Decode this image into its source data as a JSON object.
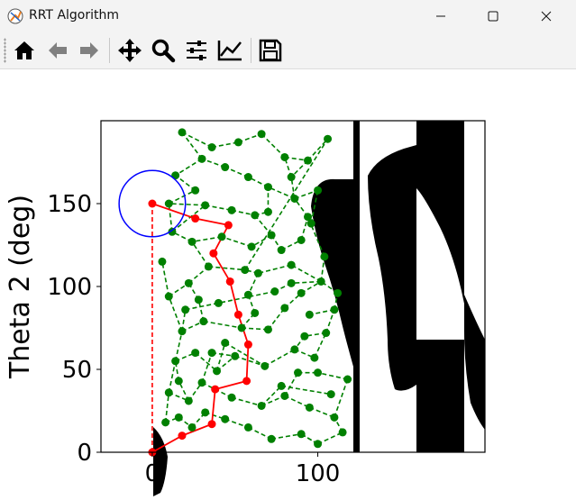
{
  "window": {
    "title": "RRT Algorithm",
    "minimize_label": "Minimize",
    "maximize_label": "Maximize",
    "close_label": "Close"
  },
  "toolbar": {
    "items": [
      "home-icon",
      "back-arrow-icon",
      "forward-arrow-icon",
      "pan-icon",
      "zoom-icon",
      "subplots-icon",
      "customize-icon",
      "save-icon"
    ]
  },
  "chart_data": {
    "type": "scatter",
    "ylabel": "Theta 2 (deg)",
    "xlim": [
      -31,
      201
    ],
    "ylim": [
      0,
      200
    ],
    "x_ticks": [
      "0",
      "100"
    ],
    "y_ticks": [
      "0",
      "50",
      "100",
      "150"
    ],
    "colors": {
      "tree": "#008000",
      "path": "#ff0000",
      "goal_circle": "#0000ff",
      "obstacle": "#000000"
    },
    "goal": {
      "center": [
        0,
        150
      ],
      "radius": 20
    },
    "path": [
      [
        0,
        0
      ],
      [
        18,
        10
      ],
      [
        36,
        17
      ],
      [
        38,
        38
      ],
      [
        57,
        43
      ],
      [
        58,
        65
      ],
      [
        52,
        83
      ],
      [
        47,
        103
      ],
      [
        37,
        120
      ],
      [
        46,
        137
      ],
      [
        26,
        141
      ],
      [
        0,
        150
      ]
    ],
    "tree_nodes": [
      [
        8,
        18
      ],
      [
        16,
        21
      ],
      [
        24,
        15
      ],
      [
        32,
        24
      ],
      [
        44,
        20
      ],
      [
        58,
        15
      ],
      [
        72,
        8
      ],
      [
        90,
        11
      ],
      [
        100,
        5
      ],
      [
        115,
        12
      ],
      [
        10,
        36
      ],
      [
        22,
        31
      ],
      [
        30,
        42
      ],
      [
        48,
        33
      ],
      [
        66,
        28
      ],
      [
        80,
        34
      ],
      [
        95,
        27
      ],
      [
        110,
        21
      ],
      [
        118,
        44
      ],
      [
        100,
        48
      ],
      [
        14,
        55
      ],
      [
        26,
        60
      ],
      [
        39,
        49
      ],
      [
        44,
        66
      ],
      [
        68,
        52
      ],
      [
        86,
        62
      ],
      [
        98,
        57
      ],
      [
        105,
        72
      ],
      [
        110,
        86
      ],
      [
        95,
        83
      ],
      [
        18,
        73
      ],
      [
        31,
        79
      ],
      [
        54,
        75
      ],
      [
        70,
        74
      ],
      [
        80,
        87
      ],
      [
        90,
        96
      ],
      [
        102,
        103
      ],
      [
        84,
        113
      ],
      [
        64,
        108
      ],
      [
        58,
        95
      ],
      [
        10,
        94
      ],
      [
        22,
        102
      ],
      [
        34,
        112
      ],
      [
        24,
        127
      ],
      [
        12,
        133
      ],
      [
        32,
        149
      ],
      [
        48,
        146
      ],
      [
        62,
        143
      ],
      [
        72,
        131
      ],
      [
        78,
        122
      ],
      [
        90,
        128
      ],
      [
        94,
        142
      ],
      [
        86,
        153
      ],
      [
        70,
        160
      ],
      [
        58,
        166
      ],
      [
        44,
        172
      ],
      [
        30,
        177
      ],
      [
        14,
        167
      ],
      [
        18,
        193
      ],
      [
        36,
        184
      ],
      [
        52,
        187
      ],
      [
        66,
        192
      ],
      [
        80,
        178
      ],
      [
        94,
        176
      ],
      [
        106,
        189
      ],
      [
        84,
        102
      ],
      [
        74,
        97
      ],
      [
        40,
        90
      ],
      [
        6,
        115
      ],
      [
        100,
        158
      ],
      [
        20,
        86
      ],
      [
        62,
        84
      ],
      [
        50,
        58
      ],
      [
        78,
        40
      ],
      [
        108,
        35
      ],
      [
        36,
        60
      ],
      [
        16,
        43
      ],
      [
        88,
        48
      ],
      [
        60,
        124
      ],
      [
        42,
        130
      ],
      [
        28,
        92
      ],
      [
        56,
        110
      ],
      [
        92,
        70
      ],
      [
        104,
        118
      ],
      [
        70,
        145
      ],
      [
        10,
        150
      ],
      [
        26,
        158
      ],
      [
        84,
        166
      ],
      [
        112,
        96
      ],
      [
        96,
        138
      ]
    ],
    "tree_edges": [
      [
        0,
        1
      ],
      [
        1,
        2
      ],
      [
        2,
        3
      ],
      [
        3,
        4
      ],
      [
        4,
        5
      ],
      [
        5,
        6
      ],
      [
        6,
        7
      ],
      [
        7,
        8
      ],
      [
        8,
        9
      ],
      [
        9,
        17
      ],
      [
        0,
        10
      ],
      [
        10,
        11
      ],
      [
        11,
        12
      ],
      [
        12,
        13
      ],
      [
        13,
        14
      ],
      [
        14,
        15
      ],
      [
        15,
        16
      ],
      [
        16,
        17
      ],
      [
        17,
        18
      ],
      [
        18,
        19
      ],
      [
        10,
        20
      ],
      [
        20,
        21
      ],
      [
        21,
        22
      ],
      [
        22,
        23
      ],
      [
        23,
        24
      ],
      [
        24,
        25
      ],
      [
        25,
        26
      ],
      [
        26,
        27
      ],
      [
        27,
        28
      ],
      [
        28,
        29
      ],
      [
        20,
        30
      ],
      [
        30,
        31
      ],
      [
        31,
        32
      ],
      [
        32,
        33
      ],
      [
        33,
        34
      ],
      [
        34,
        35
      ],
      [
        35,
        36
      ],
      [
        36,
        37
      ],
      [
        37,
        38
      ],
      [
        38,
        39
      ],
      [
        30,
        40
      ],
      [
        40,
        41
      ],
      [
        41,
        42
      ],
      [
        42,
        43
      ],
      [
        43,
        44
      ],
      [
        44,
        45
      ],
      [
        45,
        46
      ],
      [
        46,
        47
      ],
      [
        47,
        48
      ],
      [
        48,
        49
      ],
      [
        49,
        50
      ],
      [
        50,
        51
      ],
      [
        51,
        52
      ],
      [
        52,
        53
      ],
      [
        53,
        54
      ],
      [
        54,
        55
      ],
      [
        55,
        56
      ],
      [
        56,
        57
      ],
      [
        56,
        58
      ],
      [
        58,
        59
      ],
      [
        59,
        60
      ],
      [
        60,
        61
      ],
      [
        61,
        62
      ],
      [
        62,
        63
      ],
      [
        63,
        64
      ],
      [
        36,
        65
      ],
      [
        65,
        66
      ],
      [
        66,
        67
      ],
      [
        40,
        68
      ],
      [
        52,
        69
      ],
      [
        30,
        70
      ],
      [
        70,
        67
      ],
      [
        32,
        71
      ],
      [
        71,
        39
      ],
      [
        22,
        72
      ],
      [
        72,
        24
      ],
      [
        14,
        73
      ],
      [
        73,
        74
      ],
      [
        12,
        75
      ],
      [
        75,
        72
      ],
      [
        11,
        76
      ],
      [
        76,
        20
      ],
      [
        15,
        77
      ],
      [
        77,
        19
      ],
      [
        48,
        78
      ],
      [
        78,
        79
      ],
      [
        79,
        43
      ],
      [
        31,
        80
      ],
      [
        80,
        41
      ],
      [
        38,
        81
      ],
      [
        81,
        64
      ],
      [
        27,
        82
      ],
      [
        82,
        25
      ],
      [
        36,
        83
      ],
      [
        83,
        51
      ],
      [
        47,
        84
      ],
      [
        84,
        53
      ],
      [
        45,
        85
      ],
      [
        85,
        86
      ],
      [
        86,
        57
      ],
      [
        52,
        87
      ],
      [
        87,
        62
      ],
      [
        28,
        88
      ],
      [
        88,
        36
      ],
      [
        51,
        89
      ],
      [
        89,
        69
      ],
      [
        8,
        7
      ],
      [
        63,
        87
      ],
      [
        44,
        85
      ],
      [
        42,
        81
      ]
    ]
  }
}
